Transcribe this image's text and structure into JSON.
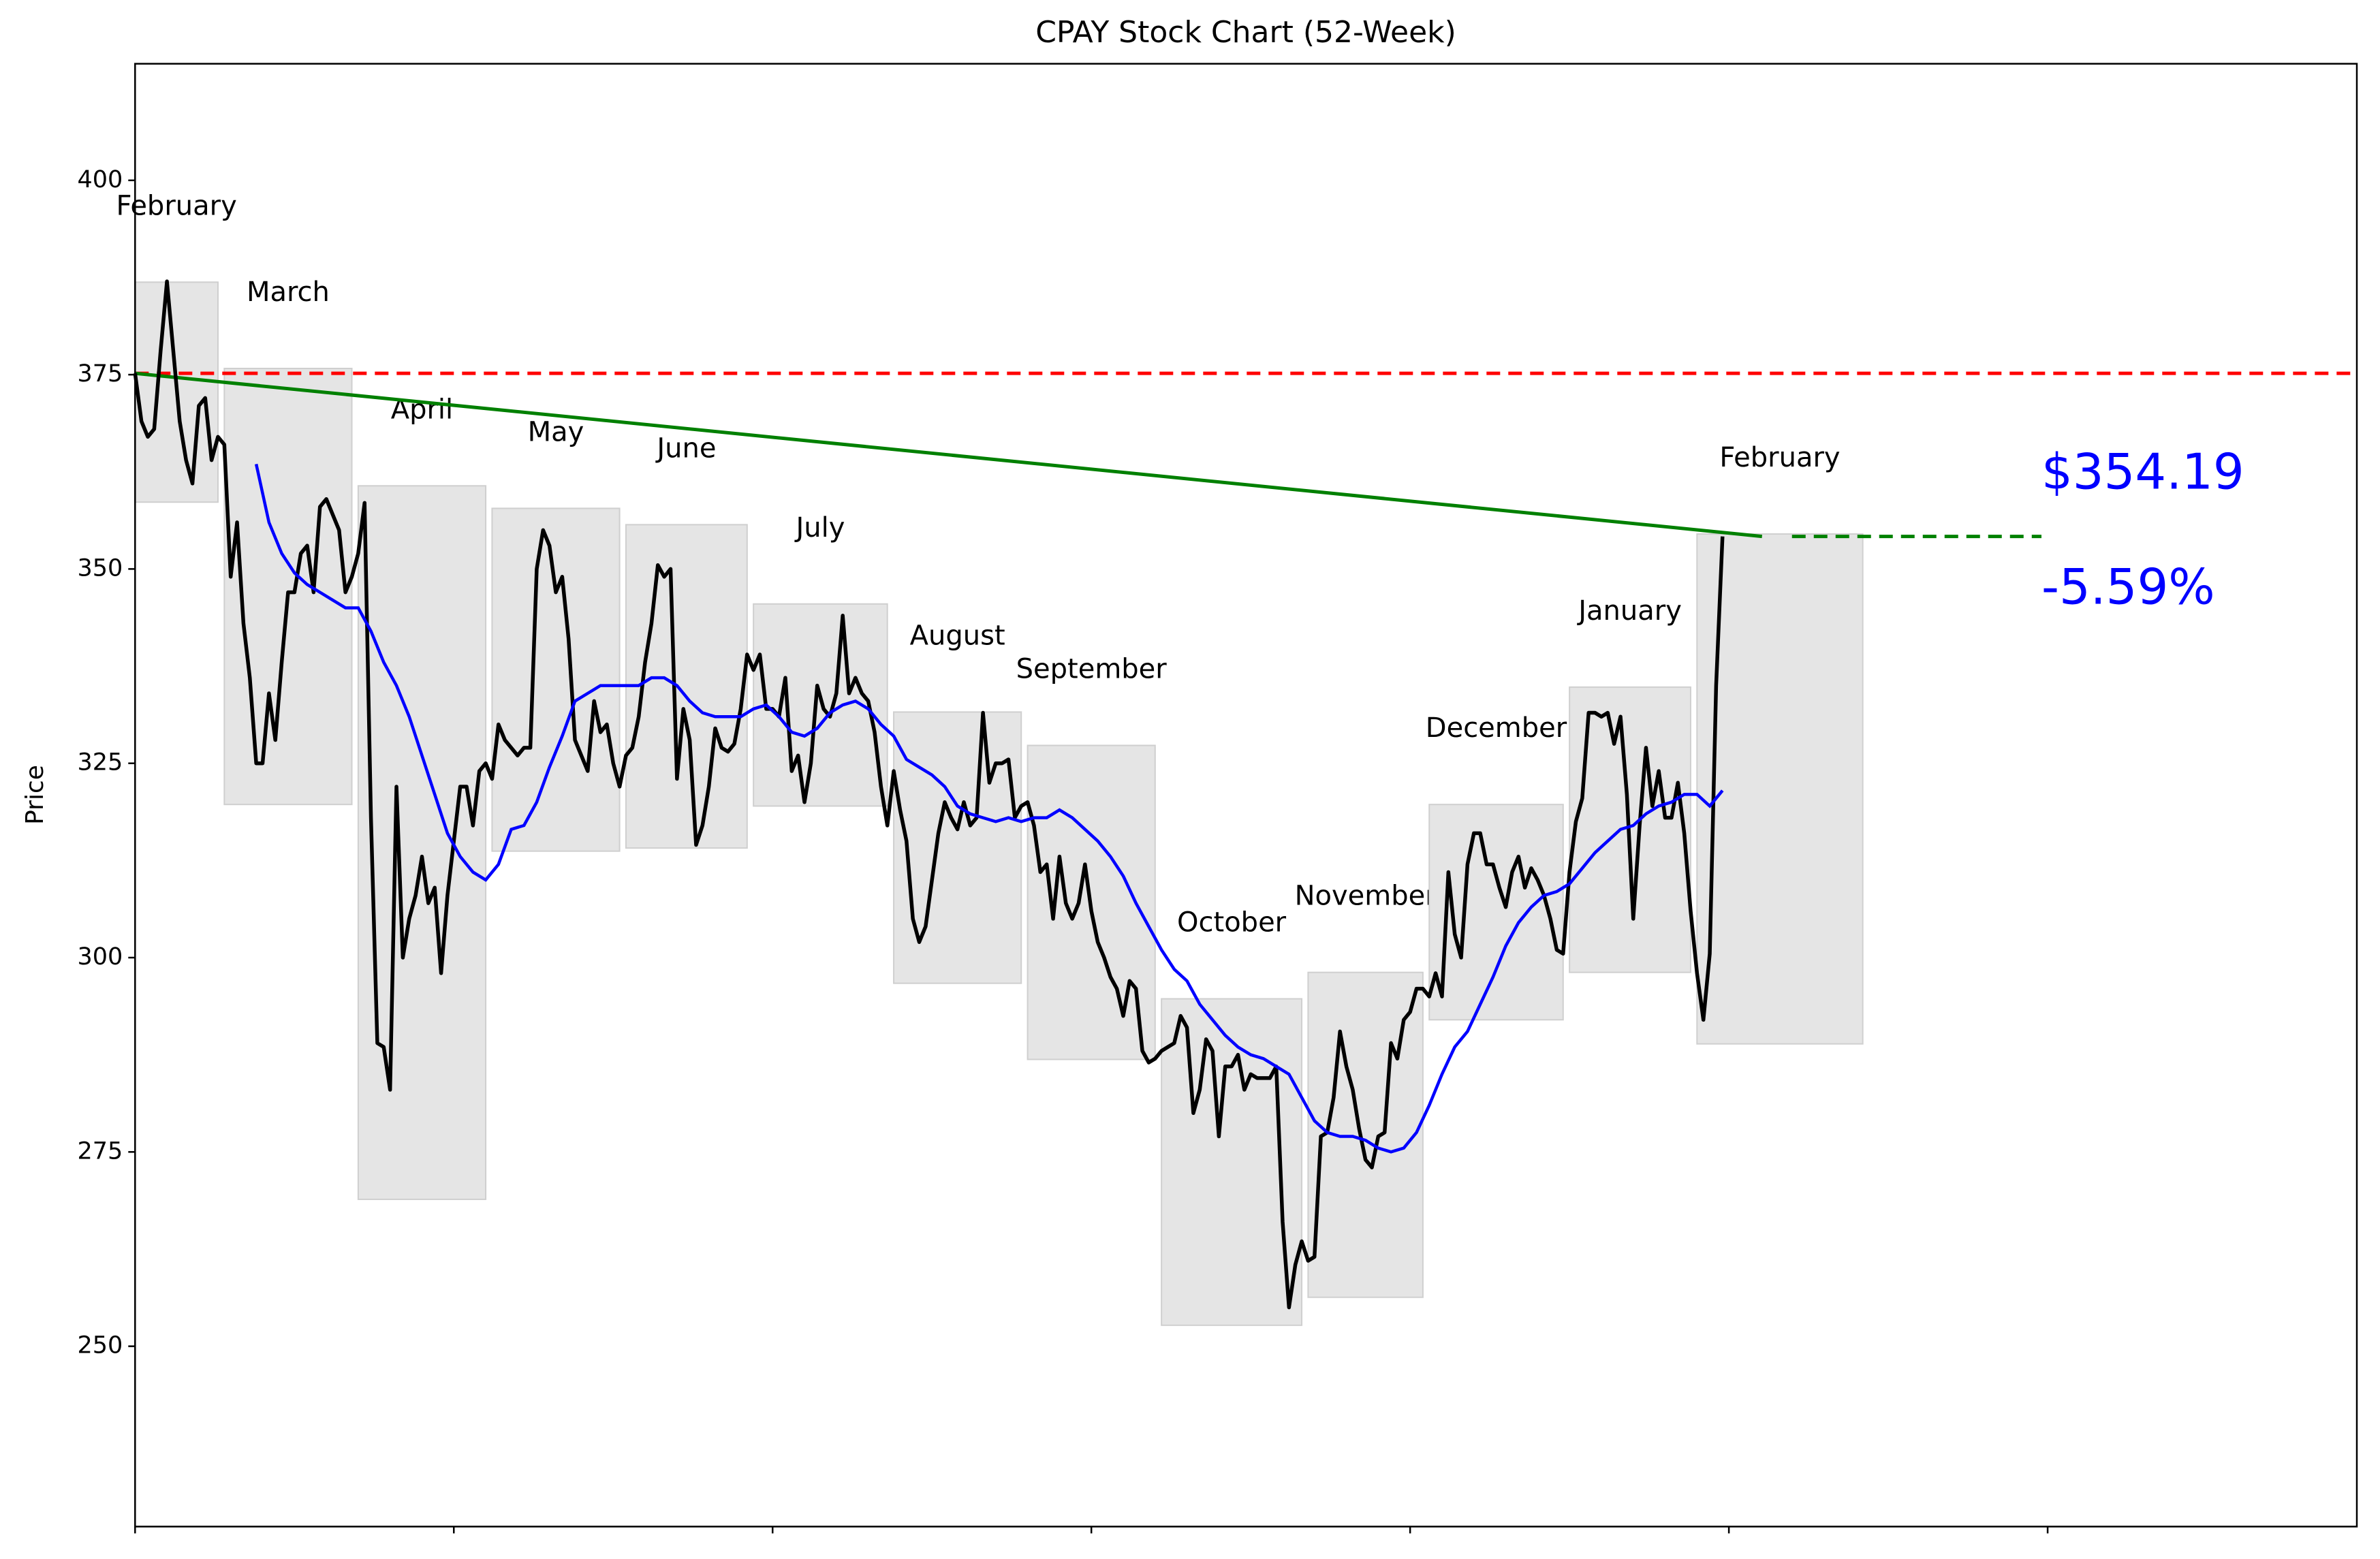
{
  "chart_data": {
    "type": "line",
    "title": "CPAY Stock Chart (52-Week)",
    "ylabel": "Price",
    "xlim": [
      0,
      348.5
    ],
    "xticks": [
      0,
      50,
      100,
      150,
      200,
      250,
      300
    ],
    "ylim": [
      226.8,
      415
    ],
    "yticks": [
      250,
      275,
      300,
      325,
      350,
      375,
      400
    ],
    "series": [
      {
        "color": "#000000",
        "values": [
          375.17,
          369,
          367,
          368,
          378,
          387,
          378,
          369,
          364,
          361,
          371,
          372,
          364,
          367,
          366,
          349,
          356,
          343,
          336,
          325,
          325,
          334,
          328,
          338,
          347,
          347,
          352,
          353,
          347,
          358,
          359,
          357,
          355,
          347,
          349,
          352,
          358.5,
          318,
          289,
          288.5,
          283,
          322,
          300,
          305,
          308,
          313,
          307,
          309,
          298,
          308,
          315,
          322,
          322,
          317,
          324,
          325,
          323,
          330,
          328,
          327,
          326,
          327,
          327,
          350,
          355,
          353,
          347,
          349,
          341,
          328,
          326,
          324,
          333,
          329,
          330,
          325,
          322,
          326,
          327,
          331,
          338,
          343,
          350.5,
          349,
          350,
          323,
          332,
          328,
          314.5,
          317,
          322,
          329.5,
          327,
          326.5,
          327.5,
          332,
          339,
          337,
          339,
          332,
          332,
          331,
          336,
          324,
          326,
          320,
          325,
          335,
          332,
          331,
          334,
          344,
          334,
          336,
          334,
          333,
          329,
          322,
          317,
          324,
          319,
          315,
          305,
          302,
          304,
          310,
          316,
          320,
          318,
          316.5,
          320,
          317,
          318,
          331.5,
          322.5,
          325,
          325,
          325.5,
          318,
          319.5,
          320,
          317,
          311,
          312,
          305,
          313,
          307,
          305,
          307,
          312,
          306,
          302,
          300,
          297.5,
          296,
          292.5,
          297,
          296,
          288,
          286.5,
          287,
          288,
          288.5,
          289,
          292.5,
          291,
          280,
          283,
          289.5,
          288,
          277,
          286,
          286,
          287.5,
          283,
          285,
          284.5,
          284.5,
          284.5,
          286,
          266,
          255,
          260.5,
          263.5,
          261,
          261.5,
          277,
          277.5,
          282,
          290.5,
          286,
          283,
          278,
          274,
          273,
          277,
          277.5,
          289,
          287,
          292,
          293,
          296,
          296,
          295,
          298,
          295,
          311,
          303,
          300,
          312,
          316,
          316,
          312,
          312,
          309,
          306.5,
          311,
          313,
          309,
          311.5,
          310,
          308,
          305,
          301,
          300.5,
          311,
          317.5,
          320.5,
          331.5,
          331.5,
          331,
          331.5,
          327.5,
          331,
          321,
          305,
          317,
          327,
          319.5,
          324,
          318,
          318,
          322.5,
          316,
          306,
          298,
          292,
          300.5,
          335,
          354.19
        ]
      }
    ],
    "moving_average": {
      "color": "#0000ff",
      "x": [
        19,
        21,
        23,
        25,
        27,
        29,
        31,
        33,
        35,
        37,
        39,
        41,
        43,
        45,
        47,
        49,
        51,
        53,
        55,
        57,
        59,
        61,
        63,
        65,
        67,
        69,
        71,
        73,
        75,
        77,
        79,
        81,
        83,
        85,
        87,
        89,
        91,
        93,
        95,
        97,
        99,
        101,
        103,
        105,
        107,
        109,
        111,
        113,
        115,
        117,
        119,
        121,
        123,
        125,
        127,
        129,
        131,
        133,
        135,
        137,
        139,
        141,
        143,
        145,
        147,
        149,
        151,
        153,
        155,
        157,
        159,
        161,
        163,
        165,
        167,
        169,
        171,
        173,
        175,
        177,
        179,
        181,
        183,
        185,
        187,
        189,
        191,
        193,
        195,
        197,
        199,
        201,
        203,
        205,
        207,
        209,
        211,
        213,
        215,
        217,
        219,
        221,
        223,
        225,
        227,
        229,
        231,
        233,
        235,
        237,
        239,
        241,
        243,
        245,
        247,
        249
      ],
      "values": [
        363.5,
        356,
        352,
        349.5,
        348,
        347,
        346,
        345,
        345,
        342,
        338,
        335,
        331,
        326,
        321,
        316,
        313,
        311,
        310,
        312,
        316.5,
        317,
        320,
        324.5,
        328.5,
        333,
        334,
        335,
        335,
        335,
        335,
        336,
        336,
        335,
        333,
        331.5,
        331,
        331,
        331,
        332,
        332.5,
        331,
        329,
        328.5,
        329.5,
        331.5,
        332.5,
        333,
        332,
        330,
        328.5,
        325.5,
        324.5,
        323.5,
        322,
        319.5,
        318.5,
        318,
        317.5,
        318,
        317.5,
        318,
        318,
        319,
        318,
        316.5,
        315,
        313,
        310.5,
        307,
        304,
        301,
        298.5,
        297,
        294,
        292,
        290,
        288.5,
        287.5,
        287,
        286,
        285,
        282,
        279,
        277.5,
        277,
        277,
        276.5,
        275.5,
        275,
        275.5,
        277.5,
        281,
        285,
        288.5,
        290.5,
        294,
        297.5,
        301.5,
        304.5,
        306.5,
        308,
        308.5,
        309.5,
        311.5,
        313.5,
        315,
        316.5,
        317,
        318.5,
        319.5,
        320,
        321,
        321,
        319.5,
        321.5
      ]
    },
    "months": [
      {
        "label": "February",
        "start": 0,
        "end": 13,
        "low": 358.6,
        "high": 386.9
      },
      {
        "label": "March",
        "start": 14,
        "end": 34,
        "low": 319.7,
        "high": 375.8
      },
      {
        "label": "April",
        "start": 35,
        "end": 55,
        "low": 268.9,
        "high": 360.7
      },
      {
        "label": "May",
        "start": 56,
        "end": 76,
        "low": 313.7,
        "high": 357.8
      },
      {
        "label": "June",
        "start": 77,
        "end": 96,
        "low": 314.1,
        "high": 355.7
      },
      {
        "label": "July",
        "start": 97,
        "end": 118,
        "low": 319.5,
        "high": 345.5
      },
      {
        "label": "August",
        "start": 119,
        "end": 139,
        "low": 296.7,
        "high": 331.6
      },
      {
        "label": "September",
        "start": 140,
        "end": 160,
        "low": 286.9,
        "high": 327.3
      },
      {
        "label": "October",
        "start": 161,
        "end": 183,
        "low": 252.7,
        "high": 294.7
      },
      {
        "label": "November",
        "start": 184,
        "end": 202,
        "low": 256.3,
        "high": 298.1
      },
      {
        "label": "December",
        "start": 203,
        "end": 224,
        "low": 292.0,
        "high": 319.7
      },
      {
        "label": "January",
        "start": 225,
        "end": 244,
        "low": 298.1,
        "high": 334.8
      },
      {
        "label": "February",
        "start": 245,
        "end": 271,
        "low": 288.9,
        "high": 354.5
      }
    ],
    "box_color": "#e5e5e5",
    "reference_line": {
      "value": 375.17,
      "color": "#ff0000"
    },
    "trend_color": "#008000",
    "price_label": "$354.19",
    "change_label": "-5.59%",
    "label_color": "#0000ff"
  }
}
